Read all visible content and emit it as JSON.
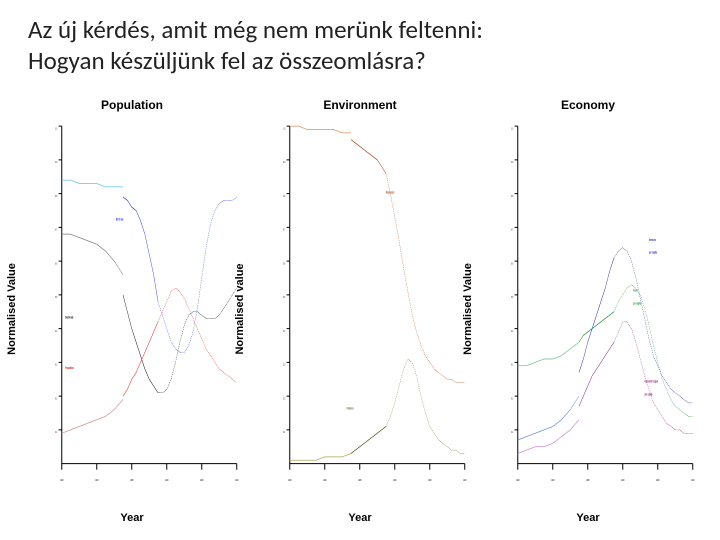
{
  "title_line1": "Az új kérdés, amit még nem merünk feltenni:",
  "title_line2": "Hogyan készüljünk fel az összeomlásra?",
  "axes": {
    "xlim": [
      1900,
      2100
    ],
    "ylim": [
      0,
      1.0
    ],
    "xticks": [
      1900,
      1940,
      1980,
      2020,
      2060,
      2100
    ],
    "yticks": [
      0.1,
      0.2,
      0.3,
      0.4,
      0.5,
      0.6,
      0.7,
      0.8,
      0.9,
      1.0
    ],
    "ylabel": "Normalised Value",
    "ylabel_alt": "Normalised value",
    "xlabel": "Year",
    "tick_fontsize": 9,
    "label_fontsize": 11,
    "title_fontsize": 12,
    "axis_color": "#000000"
  },
  "slide_title_fontsize": 25,
  "background_color": "#ffffff",
  "panels": [
    {
      "title": "Population",
      "ylabel": "Normalised Value",
      "series": [
        {
          "name": "birth-rate-obs",
          "label": "Birth rate",
          "label_color": "#1a2fd8",
          "label_x": 1962,
          "label_y": 0.72,
          "color": "#64bff2",
          "width": 2.4,
          "dash": false,
          "years": [
            1900,
            1910,
            1920,
            1930,
            1940,
            1950,
            1960,
            1970
          ],
          "values": [
            0.84,
            0.84,
            0.83,
            0.83,
            0.83,
            0.82,
            0.82,
            0.82
          ]
        },
        {
          "name": "birth-rate-model",
          "color": "#1a2fd8",
          "width": 2.6,
          "dash": false,
          "years": [
            1970,
            1975,
            1980,
            1985,
            1990,
            1995,
            2000,
            2005,
            2010
          ],
          "values": [
            0.79,
            0.78,
            0.76,
            0.75,
            0.72,
            0.68,
            0.62,
            0.56,
            0.48
          ]
        },
        {
          "name": "birth-rate-proj",
          "color": "#1a2fd8",
          "width": 1.8,
          "dash": true,
          "years": [
            2010,
            2015,
            2020,
            2025,
            2030,
            2035,
            2040,
            2045,
            2050,
            2055,
            2060,
            2065,
            2070,
            2075,
            2080,
            2085,
            2090,
            2095,
            2100
          ],
          "values": [
            0.48,
            0.44,
            0.4,
            0.36,
            0.34,
            0.33,
            0.33,
            0.35,
            0.39,
            0.46,
            0.55,
            0.64,
            0.71,
            0.75,
            0.77,
            0.78,
            0.78,
            0.78,
            0.79
          ]
        },
        {
          "name": "death-rate-obs",
          "label": "Death rate",
          "label_color": "#000000",
          "label_x": 1904,
          "label_y": 0.43,
          "color": "#7a7a7a",
          "width": 2.2,
          "dash": false,
          "years": [
            1900,
            1910,
            1920,
            1930,
            1940,
            1950,
            1960,
            1970
          ],
          "values": [
            0.68,
            0.68,
            0.67,
            0.66,
            0.65,
            0.63,
            0.6,
            0.56
          ]
        },
        {
          "name": "death-rate-model",
          "color": "#000000",
          "width": 2.4,
          "dash": false,
          "years": [
            1970,
            1975,
            1980,
            1985,
            1990,
            1995,
            2000,
            2005,
            2010
          ],
          "values": [
            0.5,
            0.45,
            0.4,
            0.36,
            0.32,
            0.28,
            0.25,
            0.23,
            0.21
          ]
        },
        {
          "name": "death-rate-proj",
          "color": "#000000",
          "width": 1.8,
          "dash": true,
          "years": [
            2010,
            2015,
            2020,
            2025,
            2030,
            2035,
            2040,
            2045,
            2050,
            2055,
            2060,
            2065,
            2070,
            2075,
            2080,
            2085,
            2090,
            2095,
            2100
          ],
          "values": [
            0.21,
            0.21,
            0.22,
            0.25,
            0.3,
            0.36,
            0.41,
            0.44,
            0.45,
            0.45,
            0.44,
            0.43,
            0.43,
            0.43,
            0.44,
            0.46,
            0.48,
            0.5,
            0.52
          ]
        },
        {
          "name": "population-model",
          "label": "Population",
          "label_color": "#d81a1a",
          "label_x": 1904,
          "label_y": 0.28,
          "color": "#d81a1a",
          "width": 2.4,
          "dash": false,
          "years": [
            1970,
            1975,
            1980,
            1985,
            1990,
            1995,
            2000,
            2005,
            2010
          ],
          "values": [
            0.2,
            0.22,
            0.25,
            0.27,
            0.3,
            0.33,
            0.36,
            0.39,
            0.42
          ]
        },
        {
          "name": "population-obs",
          "color": "#d88a8a",
          "width": 2.0,
          "dash": false,
          "years": [
            1900,
            1910,
            1920,
            1930,
            1940,
            1950,
            1960,
            1970
          ],
          "values": [
            0.09,
            0.1,
            0.11,
            0.12,
            0.13,
            0.14,
            0.16,
            0.19
          ]
        },
        {
          "name": "population-proj",
          "color": "#d81a1a",
          "width": 1.8,
          "dash": true,
          "years": [
            2010,
            2015,
            2020,
            2025,
            2030,
            2035,
            2040,
            2045,
            2050,
            2055,
            2060,
            2065,
            2070,
            2075,
            2080,
            2085,
            2090,
            2095,
            2100
          ],
          "values": [
            0.42,
            0.45,
            0.48,
            0.51,
            0.52,
            0.51,
            0.49,
            0.46,
            0.43,
            0.4,
            0.37,
            0.34,
            0.32,
            0.3,
            0.28,
            0.27,
            0.26,
            0.25,
            0.24
          ]
        }
      ]
    },
    {
      "title": "Environment",
      "ylabel": "Normalised value",
      "series": [
        {
          "name": "resources-obs",
          "label": "Resources",
          "label_color": "#a83a0a",
          "label_x": 2010,
          "label_y": 0.8,
          "color": "#d8905a",
          "width": 2.2,
          "dash": false,
          "years": [
            1900,
            1910,
            1920,
            1930,
            1940,
            1950,
            1960,
            1970
          ],
          "values": [
            1.0,
            1.0,
            0.99,
            0.99,
            0.99,
            0.99,
            0.98,
            0.98
          ]
        },
        {
          "name": "resources-model",
          "color": "#a83a0a",
          "width": 2.6,
          "dash": false,
          "years": [
            1970,
            1975,
            1980,
            1985,
            1990,
            1995,
            2000,
            2005,
            2010
          ],
          "values": [
            0.96,
            0.95,
            0.94,
            0.93,
            0.92,
            0.91,
            0.9,
            0.88,
            0.86
          ]
        },
        {
          "name": "resources-proj",
          "color": "#a83a0a",
          "width": 1.8,
          "dash": true,
          "years": [
            2010,
            2015,
            2020,
            2025,
            2030,
            2035,
            2040,
            2045,
            2050,
            2055,
            2060,
            2065,
            2070,
            2075,
            2080,
            2085,
            2090,
            2095,
            2100
          ],
          "values": [
            0.86,
            0.8,
            0.73,
            0.66,
            0.58,
            0.51,
            0.44,
            0.39,
            0.35,
            0.32,
            0.3,
            0.28,
            0.27,
            0.26,
            0.25,
            0.25,
            0.24,
            0.24,
            0.24
          ]
        },
        {
          "name": "pollution-obs",
          "label": "Pollution",
          "label_color": "#6a6a1a",
          "label_x": 1965,
          "label_y": 0.16,
          "color": "#a6a65a",
          "width": 2.0,
          "dash": false,
          "years": [
            1900,
            1910,
            1920,
            1930,
            1940,
            1950,
            1960,
            1970
          ],
          "values": [
            0.01,
            0.01,
            0.01,
            0.01,
            0.02,
            0.02,
            0.02,
            0.03
          ]
        },
        {
          "name": "pollution-model",
          "color": "#4a4a0a",
          "width": 2.4,
          "dash": false,
          "years": [
            1970,
            1975,
            1980,
            1985,
            1990,
            1995,
            2000,
            2005,
            2010
          ],
          "values": [
            0.03,
            0.04,
            0.05,
            0.06,
            0.07,
            0.08,
            0.09,
            0.1,
            0.11
          ]
        },
        {
          "name": "pollution-proj",
          "color": "#6a6a1a",
          "width": 1.8,
          "dash": true,
          "years": [
            2010,
            2015,
            2020,
            2025,
            2030,
            2035,
            2040,
            2045,
            2050,
            2055,
            2060,
            2065,
            2070,
            2075,
            2080,
            2085,
            2090,
            2095,
            2100
          ],
          "values": [
            0.11,
            0.14,
            0.18,
            0.23,
            0.28,
            0.31,
            0.3,
            0.26,
            0.2,
            0.15,
            0.11,
            0.09,
            0.07,
            0.06,
            0.05,
            0.04,
            0.04,
            0.03,
            0.03
          ]
        }
      ]
    },
    {
      "title": "Economy",
      "ylabel": "Normalised Value",
      "series": [
        {
          "name": "services-obs",
          "label": "Services per capita",
          "label_color": "#1a1a9a",
          "label_x": 2050,
          "label_y": 0.66,
          "color": "#6a8ad8",
          "width": 2.0,
          "dash": false,
          "years": [
            1900,
            1910,
            1920,
            1930,
            1940,
            1950,
            1960,
            1970
          ],
          "values": [
            0.07,
            0.08,
            0.09,
            0.1,
            0.11,
            0.13,
            0.16,
            0.2
          ]
        },
        {
          "name": "services-model",
          "color": "#1a1a9a",
          "width": 2.6,
          "dash": false,
          "years": [
            1970,
            1975,
            1980,
            1985,
            1990,
            1995,
            2000,
            2005,
            2010
          ],
          "values": [
            0.27,
            0.31,
            0.36,
            0.4,
            0.44,
            0.48,
            0.52,
            0.57,
            0.61
          ]
        },
        {
          "name": "services-proj",
          "color": "#1a1a9a",
          "width": 1.8,
          "dash": true,
          "years": [
            2010,
            2015,
            2020,
            2025,
            2030,
            2035,
            2040,
            2045,
            2050,
            2055,
            2060,
            2065,
            2070,
            2075,
            2080,
            2085,
            2090,
            2095,
            2100
          ],
          "values": [
            0.61,
            0.63,
            0.64,
            0.63,
            0.6,
            0.55,
            0.49,
            0.43,
            0.37,
            0.32,
            0.29,
            0.26,
            0.24,
            0.22,
            0.21,
            0.2,
            0.19,
            0.18,
            0.18
          ]
        },
        {
          "name": "food-obs",
          "label": "Food per capita",
          "label_color": "#148a2e",
          "label_x": 2032,
          "label_y": 0.51,
          "color": "#6ac48a",
          "width": 2.0,
          "dash": false,
          "years": [
            1900,
            1910,
            1920,
            1930,
            1940,
            1950,
            1960,
            1970
          ],
          "values": [
            0.29,
            0.29,
            0.3,
            0.31,
            0.31,
            0.32,
            0.34,
            0.36
          ]
        },
        {
          "name": "food-model",
          "color": "#148a2e",
          "width": 2.4,
          "dash": false,
          "years": [
            1970,
            1975,
            1980,
            1985,
            1990,
            1995,
            2000,
            2005,
            2010
          ],
          "values": [
            0.36,
            0.38,
            0.39,
            0.4,
            0.41,
            0.42,
            0.43,
            0.44,
            0.45
          ]
        },
        {
          "name": "food-proj",
          "color": "#148a2e",
          "width": 1.8,
          "dash": true,
          "years": [
            2010,
            2015,
            2020,
            2025,
            2030,
            2035,
            2040,
            2045,
            2050,
            2055,
            2060,
            2065,
            2070,
            2075,
            2080,
            2085,
            2090,
            2095,
            2100
          ],
          "values": [
            0.45,
            0.48,
            0.5,
            0.52,
            0.53,
            0.52,
            0.5,
            0.46,
            0.41,
            0.35,
            0.3,
            0.25,
            0.22,
            0.19,
            0.17,
            0.16,
            0.15,
            0.14,
            0.14
          ]
        },
        {
          "name": "industrial-obs",
          "label": "Industrial Output per capita",
          "label_color": "#8a1a6a",
          "label_x": 2045,
          "label_y": 0.24,
          "color": "#c48ac4",
          "width": 2.0,
          "dash": false,
          "years": [
            1900,
            1910,
            1920,
            1930,
            1940,
            1950,
            1960,
            1970
          ],
          "values": [
            0.03,
            0.04,
            0.05,
            0.05,
            0.06,
            0.08,
            0.1,
            0.13
          ]
        },
        {
          "name": "industrial-model",
          "color": "#8a1a6a",
          "width": 2.4,
          "dash": false,
          "years": [
            1970,
            1975,
            1980,
            1985,
            1990,
            1995,
            2000,
            2005,
            2010
          ],
          "values": [
            0.17,
            0.2,
            0.23,
            0.26,
            0.28,
            0.3,
            0.32,
            0.34,
            0.36
          ]
        },
        {
          "name": "industrial-proj",
          "color": "#8a1a6a",
          "width": 1.8,
          "dash": true,
          "years": [
            2010,
            2015,
            2020,
            2025,
            2030,
            2035,
            2040,
            2045,
            2050,
            2055,
            2060,
            2065,
            2070,
            2075,
            2080,
            2085,
            2090,
            2095,
            2100
          ],
          "values": [
            0.36,
            0.39,
            0.42,
            0.42,
            0.4,
            0.36,
            0.31,
            0.26,
            0.22,
            0.18,
            0.16,
            0.14,
            0.12,
            0.11,
            0.1,
            0.1,
            0.09,
            0.09,
            0.09
          ]
        }
      ]
    }
  ]
}
